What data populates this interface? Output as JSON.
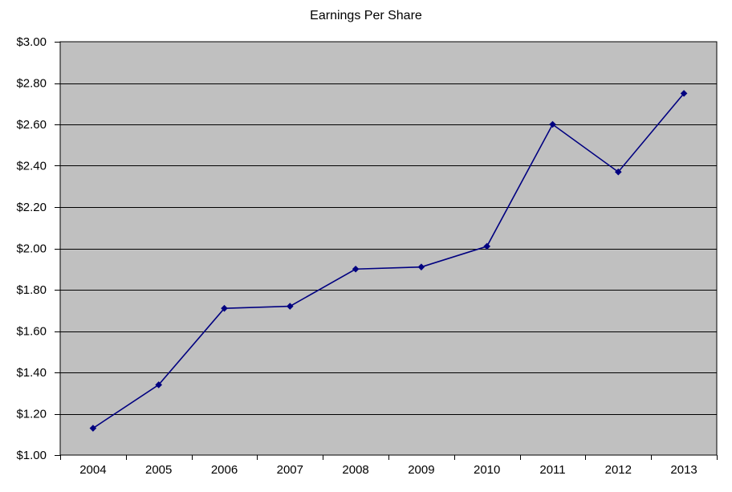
{
  "chart_data": {
    "type": "line",
    "title": "Earnings Per Share",
    "categories": [
      "2004",
      "2005",
      "2006",
      "2007",
      "2008",
      "2009",
      "2010",
      "2011",
      "2012",
      "2013"
    ],
    "series": [
      {
        "name": "Earnings Per Share",
        "values": [
          1.13,
          1.34,
          1.71,
          1.72,
          1.9,
          1.91,
          2.01,
          2.6,
          2.37,
          2.75
        ]
      }
    ],
    "xlabel": "",
    "ylabel": "",
    "ylim": [
      1.0,
      3.0
    ],
    "ytick_step": 0.2,
    "y_tick_labels": [
      "$1.00",
      "$1.20",
      "$1.40",
      "$1.60",
      "$1.80",
      "$2.00",
      "$2.20",
      "$2.40",
      "$2.60",
      "$2.80",
      "$3.00"
    ],
    "grid": "horizontal",
    "legend": "none",
    "marker": "diamond",
    "colors": {
      "line": "#000080",
      "marker": "#000080",
      "plot_background": "#C0C0C0",
      "gridline": "#000000",
      "axis": "#000000",
      "text": "#000000",
      "page_background": "#FFFFFF"
    }
  }
}
